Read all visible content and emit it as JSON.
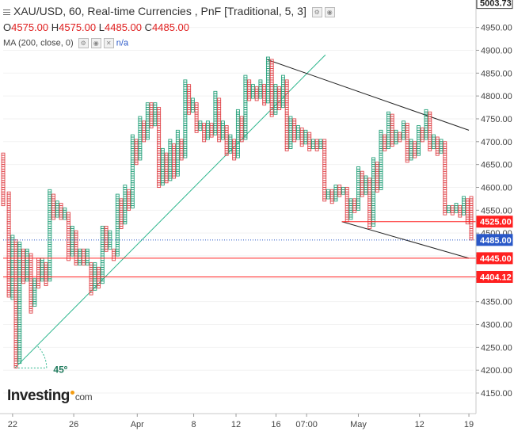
{
  "legend": {
    "title": "XAU/USD, 60, Real-time Currencies , PnF [Traditional, 5, 3]",
    "ohlc": [
      {
        "label": "O",
        "value": "4575.00"
      },
      {
        "label": "H",
        "value": "4575.00"
      },
      {
        "label": "L",
        "value": "4485.00"
      },
      {
        "label": "C",
        "value": "4485.00"
      }
    ],
    "ma_label": "MA (200, close, 0)",
    "ma_value": "n/a"
  },
  "brand": {
    "name": "Investing",
    "suffix": "com"
  },
  "colors": {
    "x_box": "#26a17b",
    "o_box": "#e0474c",
    "hline": "#ff2020",
    "trendline_up": "#2bb58c",
    "trendline_down": "#222222",
    "last_price_line": "#2a58c8",
    "axis_text": "#444444",
    "grid": "#f2f2f2"
  },
  "chart_data": {
    "type": "point-and-figure",
    "title": "XAU/USD, 60, Real-time Currencies , PnF [Traditional, 5, 3]",
    "box_size": 5,
    "reversal": 3,
    "ylim": [
      4105,
      5010
    ],
    "y_ticks": [
      4150,
      4200,
      4250,
      4300,
      4350,
      4400,
      4450,
      4500,
      4550,
      4600,
      4650,
      4700,
      4750,
      4800,
      4850,
      4900,
      4950
    ],
    "x_ticks": [
      "22",
      "26",
      "Apr",
      "8",
      "12",
      "16",
      "07:00",
      "May",
      "12",
      "19"
    ],
    "x_tick_fracs": [
      0.02,
      0.15,
      0.285,
      0.405,
      0.495,
      0.58,
      0.645,
      0.755,
      0.885,
      0.99
    ],
    "price_labels": [
      {
        "value": 5003.73,
        "text": "5003.73",
        "style": "outline"
      },
      {
        "value": 4525.0,
        "text": "4525.00",
        "style": "red"
      },
      {
        "value": 4485.0,
        "text": "4485.00",
        "style": "blue"
      },
      {
        "value": 4445.0,
        "text": "4445.00",
        "style": "red"
      },
      {
        "value": 4404.12,
        "text": "4404.12",
        "style": "red"
      }
    ],
    "horizontal_lines": [
      {
        "value": 4525.0,
        "x_from": 0.72,
        "color": "red"
      },
      {
        "value": 4445.0,
        "x_from": 0.0,
        "color": "red"
      },
      {
        "value": 4404.12,
        "x_from": 0.0,
        "color": "red"
      },
      {
        "value": 4485.0,
        "x_from": 0.0,
        "color": "blue-dotted"
      }
    ],
    "trendlines": [
      {
        "name": "up-45",
        "from": [
          0.025,
          4205
        ],
        "to": [
          0.685,
          4890
        ],
        "color": "green"
      },
      {
        "name": "down-upper",
        "from": [
          0.56,
          4880
        ],
        "to": [
          0.99,
          4725
        ],
        "color": "black"
      },
      {
        "name": "down-lower",
        "from": [
          0.72,
          4525
        ],
        "to": [
          0.99,
          4445
        ],
        "color": "black"
      }
    ],
    "annotation": {
      "text": "45º",
      "x": 0.1,
      "value": 4205
    },
    "columns": [
      {
        "x": 0.0,
        "dir": "O",
        "hi": 4670,
        "lo": 4560
      },
      {
        "x": 0.012,
        "dir": "O",
        "hi": 4585,
        "lo": 4360
      },
      {
        "x": 0.02,
        "dir": "X",
        "hi": 4490,
        "lo": 4355
      },
      {
        "x": 0.027,
        "dir": "O",
        "hi": 4480,
        "lo": 4205
      },
      {
        "x": 0.035,
        "dir": "X",
        "hi": 4475,
        "lo": 4215
      },
      {
        "x": 0.043,
        "dir": "O",
        "hi": 4460,
        "lo": 4390
      },
      {
        "x": 0.051,
        "dir": "X",
        "hi": 4460,
        "lo": 4395
      },
      {
        "x": 0.059,
        "dir": "O",
        "hi": 4450,
        "lo": 4325
      },
      {
        "x": 0.067,
        "dir": "X",
        "hi": 4395,
        "lo": 4340
      },
      {
        "x": 0.075,
        "dir": "O",
        "hi": 4440,
        "lo": 4380
      },
      {
        "x": 0.083,
        "dir": "X",
        "hi": 4440,
        "lo": 4395
      },
      {
        "x": 0.091,
        "dir": "O",
        "hi": 4430,
        "lo": 4385
      },
      {
        "x": 0.099,
        "dir": "X",
        "hi": 4590,
        "lo": 4395
      },
      {
        "x": 0.107,
        "dir": "O",
        "hi": 4580,
        "lo": 4530
      },
      {
        "x": 0.115,
        "dir": "X",
        "hi": 4565,
        "lo": 4535
      },
      {
        "x": 0.123,
        "dir": "O",
        "hi": 4560,
        "lo": 4530
      },
      {
        "x": 0.131,
        "dir": "X",
        "hi": 4550,
        "lo": 4530
      },
      {
        "x": 0.139,
        "dir": "O",
        "hi": 4540,
        "lo": 4440
      },
      {
        "x": 0.147,
        "dir": "X",
        "hi": 4510,
        "lo": 4450
      },
      {
        "x": 0.155,
        "dir": "O",
        "hi": 4500,
        "lo": 4430
      },
      {
        "x": 0.163,
        "dir": "X",
        "hi": 4460,
        "lo": 4430
      },
      {
        "x": 0.171,
        "dir": "O",
        "hi": 4460,
        "lo": 4430
      },
      {
        "x": 0.179,
        "dir": "X",
        "hi": 4460,
        "lo": 4430
      },
      {
        "x": 0.187,
        "dir": "O",
        "hi": 4430,
        "lo": 4365
      },
      {
        "x": 0.195,
        "dir": "X",
        "hi": 4430,
        "lo": 4375
      },
      {
        "x": 0.203,
        "dir": "O",
        "hi": 4420,
        "lo": 4380
      },
      {
        "x": 0.211,
        "dir": "X",
        "hi": 4510,
        "lo": 4390
      },
      {
        "x": 0.219,
        "dir": "O",
        "hi": 4510,
        "lo": 4460
      },
      {
        "x": 0.227,
        "dir": "X",
        "hi": 4500,
        "lo": 4465
      },
      {
        "x": 0.235,
        "dir": "O",
        "hi": 4460,
        "lo": 4440
      },
      {
        "x": 0.243,
        "dir": "X",
        "hi": 4580,
        "lo": 4450
      },
      {
        "x": 0.251,
        "dir": "O",
        "hi": 4570,
        "lo": 4510
      },
      {
        "x": 0.259,
        "dir": "X",
        "hi": 4600,
        "lo": 4520
      },
      {
        "x": 0.267,
        "dir": "O",
        "hi": 4590,
        "lo": 4550
      },
      {
        "x": 0.275,
        "dir": "X",
        "hi": 4710,
        "lo": 4555
      },
      {
        "x": 0.283,
        "dir": "O",
        "hi": 4700,
        "lo": 4650
      },
      {
        "x": 0.291,
        "dir": "X",
        "hi": 4750,
        "lo": 4660
      },
      {
        "x": 0.299,
        "dir": "O",
        "hi": 4740,
        "lo": 4700
      },
      {
        "x": 0.307,
        "dir": "X",
        "hi": 4780,
        "lo": 4705
      },
      {
        "x": 0.315,
        "dir": "O",
        "hi": 4780,
        "lo": 4730
      },
      {
        "x": 0.323,
        "dir": "X",
        "hi": 4780,
        "lo": 4735
      },
      {
        "x": 0.331,
        "dir": "O",
        "hi": 4770,
        "lo": 4600
      },
      {
        "x": 0.339,
        "dir": "X",
        "hi": 4680,
        "lo": 4605
      },
      {
        "x": 0.347,
        "dir": "O",
        "hi": 4670,
        "lo": 4610
      },
      {
        "x": 0.355,
        "dir": "X",
        "hi": 4700,
        "lo": 4615
      },
      {
        "x": 0.363,
        "dir": "O",
        "hi": 4690,
        "lo": 4620
      },
      {
        "x": 0.371,
        "dir": "X",
        "hi": 4720,
        "lo": 4625
      },
      {
        "x": 0.379,
        "dir": "O",
        "hi": 4700,
        "lo": 4660
      },
      {
        "x": 0.387,
        "dir": "X",
        "hi": 4830,
        "lo": 4665
      },
      {
        "x": 0.395,
        "dir": "O",
        "hi": 4820,
        "lo": 4760
      },
      {
        "x": 0.403,
        "dir": "X",
        "hi": 4790,
        "lo": 4765
      },
      {
        "x": 0.411,
        "dir": "O",
        "hi": 4780,
        "lo": 4720
      },
      {
        "x": 0.419,
        "dir": "X",
        "hi": 4740,
        "lo": 4725
      },
      {
        "x": 0.427,
        "dir": "O",
        "hi": 4735,
        "lo": 4700
      },
      {
        "x": 0.435,
        "dir": "X",
        "hi": 4740,
        "lo": 4705
      },
      {
        "x": 0.443,
        "dir": "O",
        "hi": 4735,
        "lo": 4710
      },
      {
        "x": 0.451,
        "dir": "X",
        "hi": 4805,
        "lo": 4715
      },
      {
        "x": 0.459,
        "dir": "O",
        "hi": 4790,
        "lo": 4700
      },
      {
        "x": 0.467,
        "dir": "X",
        "hi": 4740,
        "lo": 4705
      },
      {
        "x": 0.475,
        "dir": "O",
        "hi": 4730,
        "lo": 4670
      },
      {
        "x": 0.483,
        "dir": "X",
        "hi": 4710,
        "lo": 4675
      },
      {
        "x": 0.491,
        "dir": "O",
        "hi": 4700,
        "lo": 4660
      },
      {
        "x": 0.499,
        "dir": "X",
        "hi": 4765,
        "lo": 4665
      },
      {
        "x": 0.507,
        "dir": "O",
        "hi": 4750,
        "lo": 4700
      },
      {
        "x": 0.515,
        "dir": "X",
        "hi": 4840,
        "lo": 4705
      },
      {
        "x": 0.523,
        "dir": "O",
        "hi": 4830,
        "lo": 4790
      },
      {
        "x": 0.531,
        "dir": "X",
        "hi": 4820,
        "lo": 4795
      },
      {
        "x": 0.539,
        "dir": "O",
        "hi": 4815,
        "lo": 4790
      },
      {
        "x": 0.547,
        "dir": "X",
        "hi": 4830,
        "lo": 4795
      },
      {
        "x": 0.555,
        "dir": "O",
        "hi": 4820,
        "lo": 4780
      },
      {
        "x": 0.563,
        "dir": "X",
        "hi": 4880,
        "lo": 4785
      },
      {
        "x": 0.571,
        "dir": "O",
        "hi": 4875,
        "lo": 4755
      },
      {
        "x": 0.579,
        "dir": "X",
        "hi": 4820,
        "lo": 4760
      },
      {
        "x": 0.587,
        "dir": "O",
        "hi": 4815,
        "lo": 4770
      },
      {
        "x": 0.595,
        "dir": "X",
        "hi": 4840,
        "lo": 4775
      },
      {
        "x": 0.603,
        "dir": "O",
        "hi": 4830,
        "lo": 4680
      },
      {
        "x": 0.611,
        "dir": "X",
        "hi": 4750,
        "lo": 4685
      },
      {
        "x": 0.619,
        "dir": "O",
        "hi": 4745,
        "lo": 4700
      },
      {
        "x": 0.627,
        "dir": "X",
        "hi": 4730,
        "lo": 4705
      },
      {
        "x": 0.635,
        "dir": "O",
        "hi": 4725,
        "lo": 4690
      },
      {
        "x": 0.643,
        "dir": "X",
        "hi": 4720,
        "lo": 4695
      },
      {
        "x": 0.651,
        "dir": "O",
        "hi": 4715,
        "lo": 4680
      },
      {
        "x": 0.659,
        "dir": "X",
        "hi": 4700,
        "lo": 4685
      },
      {
        "x": 0.667,
        "dir": "O",
        "hi": 4700,
        "lo": 4680
      },
      {
        "x": 0.675,
        "dir": "X",
        "hi": 4700,
        "lo": 4685
      },
      {
        "x": 0.683,
        "dir": "O",
        "hi": 4700,
        "lo": 4570
      },
      {
        "x": 0.691,
        "dir": "X",
        "hi": 4590,
        "lo": 4575
      },
      {
        "x": 0.699,
        "dir": "O",
        "hi": 4590,
        "lo": 4565
      },
      {
        "x": 0.707,
        "dir": "X",
        "hi": 4600,
        "lo": 4570
      },
      {
        "x": 0.715,
        "dir": "O",
        "hi": 4600,
        "lo": 4580
      },
      {
        "x": 0.723,
        "dir": "X",
        "hi": 4595,
        "lo": 4585
      },
      {
        "x": 0.731,
        "dir": "O",
        "hi": 4595,
        "lo": 4525
      },
      {
        "x": 0.739,
        "dir": "X",
        "hi": 4570,
        "lo": 4530
      },
      {
        "x": 0.747,
        "dir": "O",
        "hi": 4570,
        "lo": 4545
      },
      {
        "x": 0.755,
        "dir": "X",
        "hi": 4640,
        "lo": 4550
      },
      {
        "x": 0.763,
        "dir": "O",
        "hi": 4630,
        "lo": 4580
      },
      {
        "x": 0.771,
        "dir": "X",
        "hi": 4620,
        "lo": 4585
      },
      {
        "x": 0.779,
        "dir": "O",
        "hi": 4615,
        "lo": 4510
      },
      {
        "x": 0.787,
        "dir": "X",
        "hi": 4660,
        "lo": 4515
      },
      {
        "x": 0.795,
        "dir": "O",
        "hi": 4650,
        "lo": 4590
      },
      {
        "x": 0.803,
        "dir": "X",
        "hi": 4720,
        "lo": 4595
      },
      {
        "x": 0.811,
        "dir": "O",
        "hi": 4710,
        "lo": 4680
      },
      {
        "x": 0.819,
        "dir": "X",
        "hi": 4760,
        "lo": 4685
      },
      {
        "x": 0.827,
        "dir": "O",
        "hi": 4755,
        "lo": 4690
      },
      {
        "x": 0.835,
        "dir": "X",
        "hi": 4720,
        "lo": 4695
      },
      {
        "x": 0.843,
        "dir": "O",
        "hi": 4715,
        "lo": 4700
      },
      {
        "x": 0.851,
        "dir": "X",
        "hi": 4740,
        "lo": 4705
      },
      {
        "x": 0.859,
        "dir": "O",
        "hi": 4735,
        "lo": 4655
      },
      {
        "x": 0.867,
        "dir": "X",
        "hi": 4700,
        "lo": 4660
      },
      {
        "x": 0.875,
        "dir": "O",
        "hi": 4695,
        "lo": 4665
      },
      {
        "x": 0.883,
        "dir": "X",
        "hi": 4730,
        "lo": 4670
      },
      {
        "x": 0.891,
        "dir": "O",
        "hi": 4725,
        "lo": 4700
      },
      {
        "x": 0.899,
        "dir": "X",
        "hi": 4765,
        "lo": 4705
      },
      {
        "x": 0.907,
        "dir": "O",
        "hi": 4760,
        "lo": 4680
      },
      {
        "x": 0.915,
        "dir": "X",
        "hi": 4710,
        "lo": 4685
      },
      {
        "x": 0.923,
        "dir": "O",
        "hi": 4705,
        "lo": 4670
      },
      {
        "x": 0.931,
        "dir": "X",
        "hi": 4700,
        "lo": 4675
      },
      {
        "x": 0.939,
        "dir": "O",
        "hi": 4695,
        "lo": 4540
      },
      {
        "x": 0.947,
        "dir": "X",
        "hi": 4555,
        "lo": 4545
      },
      {
        "x": 0.955,
        "dir": "O",
        "hi": 4555,
        "lo": 4540
      },
      {
        "x": 0.963,
        "dir": "X",
        "hi": 4560,
        "lo": 4545
      },
      {
        "x": 0.971,
        "dir": "O",
        "hi": 4555,
        "lo": 4535
      },
      {
        "x": 0.979,
        "dir": "X",
        "hi": 4575,
        "lo": 4540
      },
      {
        "x": 0.987,
        "dir": "O",
        "hi": 4570,
        "lo": 4520
      },
      {
        "x": 0.995,
        "dir": "O",
        "hi": 4575,
        "lo": 4485
      }
    ]
  }
}
